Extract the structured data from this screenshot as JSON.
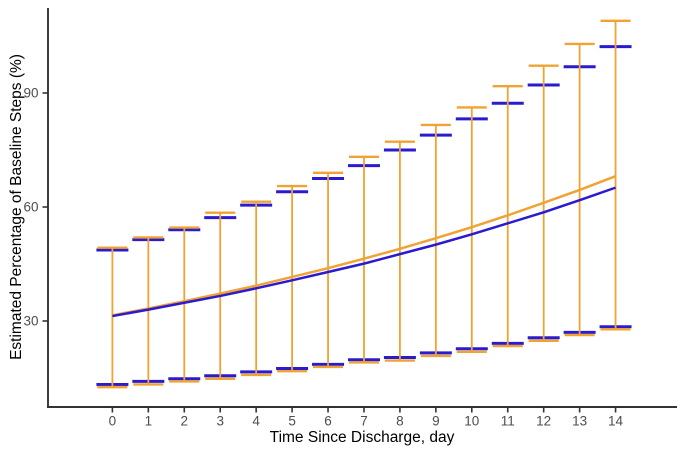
{
  "chart_data": {
    "type": "line",
    "title": "",
    "xlabel": "Time Since Discharge, day",
    "ylabel": "Estimated Percentage of Baseline Steps (%)",
    "x": [
      0,
      1,
      2,
      3,
      4,
      5,
      6,
      7,
      8,
      9,
      10,
      11,
      12,
      13,
      14
    ],
    "xtick_labels": [
      "0",
      "1",
      "2",
      "3",
      "4",
      "5",
      "6",
      "7",
      "8",
      "9",
      "10",
      "11",
      "12",
      "13",
      "14"
    ],
    "yticks": [
      30,
      60,
      90
    ],
    "ytick_labels": [
      "30",
      "60",
      "90"
    ],
    "ylim": [
      7,
      112.5
    ],
    "xlim": [
      -1.8,
      15.7
    ],
    "grid": false,
    "legend": "none",
    "colors": {
      "orange_series": "#F0A232",
      "blue_series": "#2A1BD1",
      "axis_line": "#333333",
      "tick_label": "#4d4d4d",
      "axis_title": "#000000"
    },
    "series": [
      {
        "name": "orange-estimate",
        "color": "#F0A232",
        "values": [
          31.5,
          33.3,
          35.2,
          37.2,
          39.3,
          41.6,
          43.9,
          46.4,
          49.0,
          51.8,
          54.7,
          57.8,
          61.1,
          64.5,
          68.1
        ]
      },
      {
        "name": "blue-estimate",
        "color": "#2A1BD1",
        "values": [
          31.3,
          33.0,
          34.8,
          36.6,
          38.6,
          40.7,
          42.9,
          45.1,
          47.6,
          50.1,
          52.8,
          55.7,
          58.6,
          61.8,
          65.1
        ]
      }
    ],
    "error_bars": [
      {
        "name": "orange-interval",
        "color": "#F0A232",
        "upper": [
          49.3,
          52.0,
          54.6,
          58.5,
          61.4,
          65.5,
          69.0,
          73.2,
          77.2,
          81.6,
          86.2,
          91.8,
          97.2,
          102.9,
          109.0
        ],
        "lower": [
          12.6,
          13.3,
          14.1,
          14.8,
          15.8,
          16.8,
          17.9,
          19.1,
          19.6,
          20.8,
          21.9,
          23.4,
          24.8,
          26.3,
          27.8
        ]
      },
      {
        "name": "blue-interval",
        "color": "#2A1BD1",
        "upper": [
          48.7,
          51.4,
          54.0,
          57.2,
          60.5,
          64.0,
          67.5,
          70.9,
          75.0,
          78.9,
          83.2,
          87.3,
          92.1,
          96.9,
          102.2
        ],
        "lower": [
          13.3,
          14.1,
          14.8,
          15.6,
          16.6,
          17.5,
          18.6,
          19.8,
          20.4,
          21.6,
          22.7,
          24.1,
          25.6,
          27.0,
          28.5
        ]
      }
    ]
  }
}
